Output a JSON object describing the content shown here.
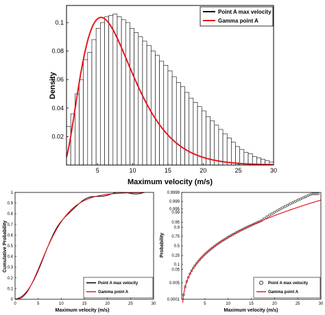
{
  "chart_data": [
    {
      "type": "bar",
      "title": "",
      "xlabel": "Maximum velocity (m/s)",
      "ylabel": "Density",
      "xlim": [
        0.6,
        30
      ],
      "ylim": [
        0,
        0.112
      ],
      "xticks": [
        "5",
        "10",
        "15",
        "20",
        "25",
        "30"
      ],
      "yticks": [
        "0.02",
        "0.04",
        "0.06",
        "0.08",
        "0.1"
      ],
      "bin_width": 0.6,
      "bin_start": 0.6,
      "values": [
        0.027,
        0.036,
        0.05,
        0.06,
        0.074,
        0.079,
        0.088,
        0.096,
        0.1,
        0.104,
        0.105,
        0.106,
        0.104,
        0.102,
        0.1,
        0.096,
        0.093,
        0.09,
        0.087,
        0.084,
        0.08,
        0.077,
        0.073,
        0.07,
        0.066,
        0.062,
        0.058,
        0.055,
        0.051,
        0.047,
        0.044,
        0.041,
        0.038,
        0.034,
        0.031,
        0.028,
        0.025,
        0.022,
        0.019,
        0.016,
        0.013,
        0.011,
        0.009,
        0.008,
        0.006,
        0.005,
        0.004,
        0.003,
        0.002,
        0.001
      ],
      "series": [
        {
          "name": "Point A max velocity",
          "kind": "histogram",
          "color": "#000000"
        },
        {
          "name": "Gamma point A",
          "kind": "gamma-pdf",
          "color": "#e8141c",
          "shape": 3.2,
          "scale": 2.5
        }
      ],
      "legend_position": "top-right",
      "grid": false
    },
    {
      "type": "line",
      "title": "",
      "xlabel": "Maximum velocity  (m/s)",
      "ylabel": "Cumulative Probability",
      "xlim": [
        0,
        30
      ],
      "ylim": [
        0,
        1
      ],
      "xticks": [
        "0",
        "5",
        "10",
        "15",
        "20",
        "25",
        "30"
      ],
      "yticks": [
        "0",
        "0.1",
        "0.2",
        "0.3",
        "0.4",
        "0.5",
        "0.6",
        "0.7",
        "0.8",
        "0.9",
        "1"
      ],
      "series": [
        {
          "name": "Point A max velocity",
          "kind": "empirical-cdf",
          "color": "#000000",
          "shape": 3.2,
          "scale": 2.5
        },
        {
          "name": "Gamma point A",
          "kind": "gamma-cdf",
          "color": "#e8141c",
          "shape": 3.2,
          "scale": 2.5
        }
      ],
      "legend_position": "bottom-right",
      "grid": false
    },
    {
      "type": "scatter",
      "title": "",
      "xlabel": "Maximum velocity (m/s)",
      "ylabel": "Probability",
      "xlim": [
        0,
        30
      ],
      "xticks": [
        "5",
        "10",
        "15",
        "20",
        "25",
        "30"
      ],
      "yticks": [
        "0.0001",
        "0.005",
        "0.05",
        "0.1",
        "0.25",
        "0.5",
        "0.75",
        "0.9",
        "0.95",
        "0.99",
        "0.995",
        "0.999",
        "0.9999"
      ],
      "series": [
        {
          "name": "Point A max velocity",
          "kind": "markers-circle",
          "color": "#000000"
        },
        {
          "name": "Gamma point A",
          "kind": "fit-line",
          "color": "#e8141c"
        }
      ],
      "legend_position": "bottom-right",
      "grid": false
    }
  ]
}
